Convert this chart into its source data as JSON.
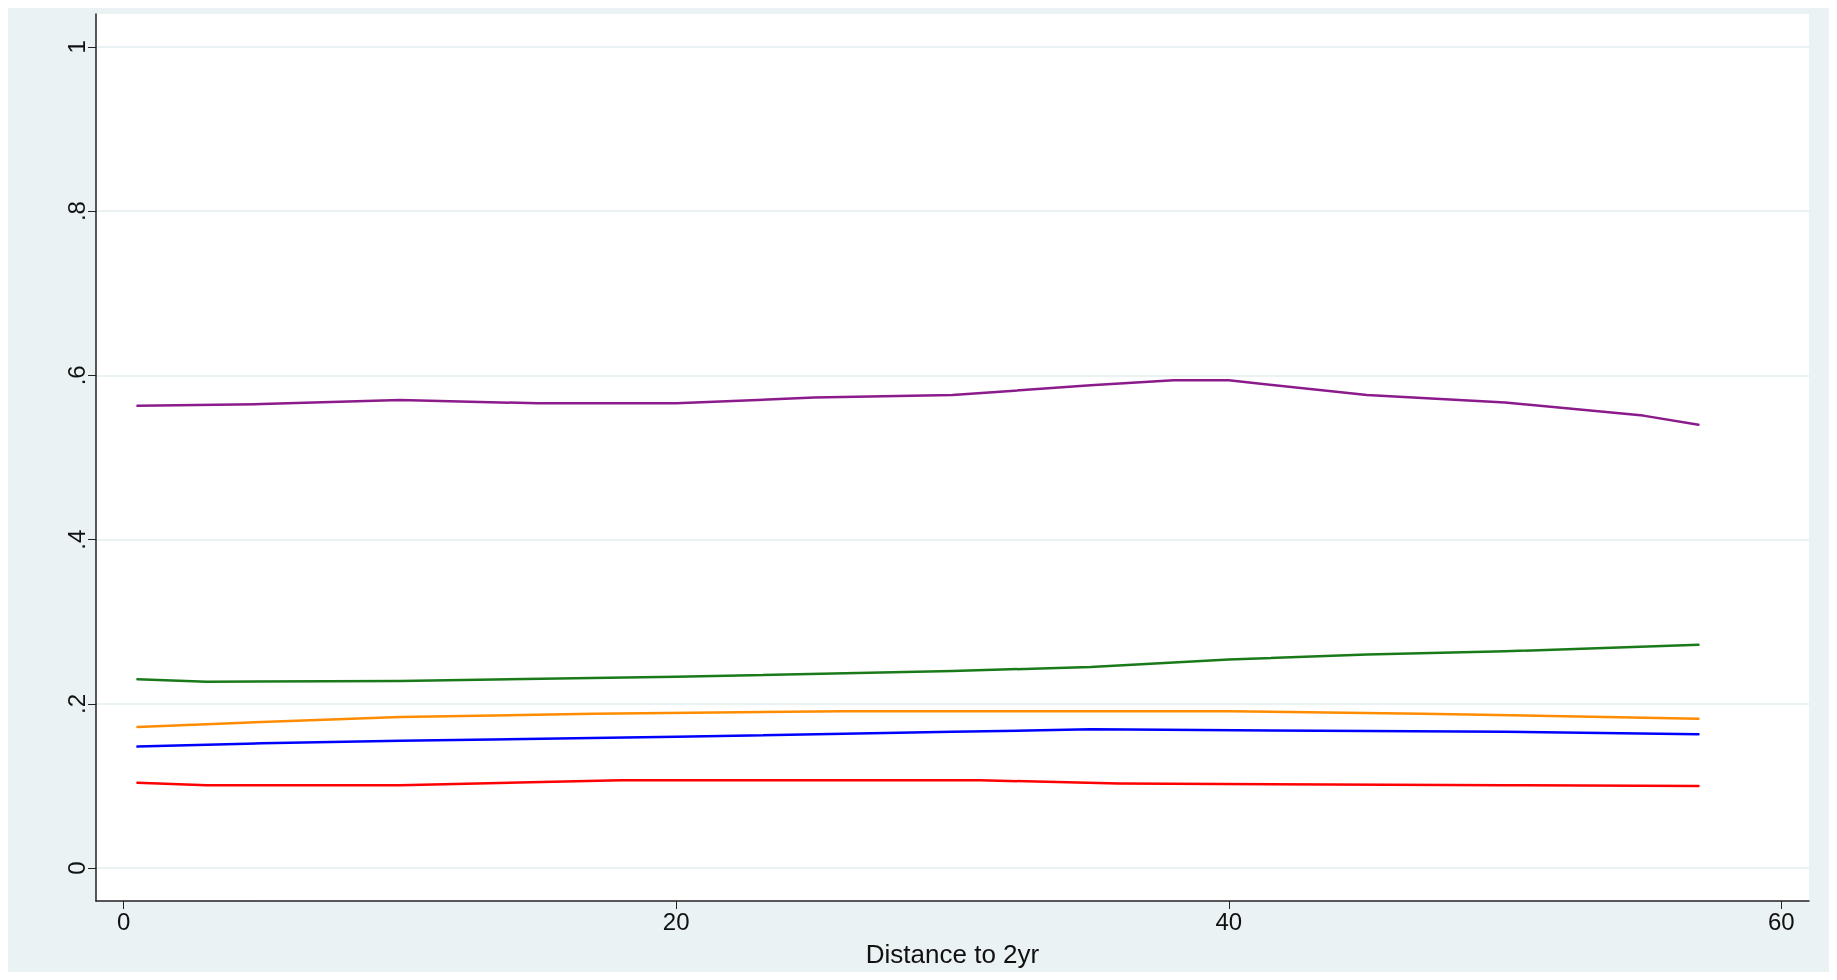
{
  "chart_data": {
    "type": "line",
    "xlabel": "Distance to 2yr",
    "xlim": [
      -1,
      61
    ],
    "xticks": [
      0,
      20,
      40,
      60
    ],
    "ylim": [
      -0.04,
      1.04
    ],
    "yticks": [
      0,
      {
        "value": 0.2,
        "label": ".2"
      },
      {
        "value": 0.4,
        "label": ".4"
      },
      {
        "value": 0.6,
        "label": ".6"
      },
      {
        "value": 0.8,
        "label": ".8"
      },
      1
    ],
    "grid": "y",
    "marker": "none",
    "line_style": "solid",
    "series": [
      {
        "color": "#8b1a8b",
        "x": [
          0.5,
          5,
          10,
          15,
          20,
          25,
          30,
          35,
          38,
          40,
          45,
          50,
          55,
          57
        ],
        "values": [
          0.563,
          0.565,
          0.57,
          0.566,
          0.566,
          0.573,
          0.576,
          0.588,
          0.594,
          0.594,
          0.576,
          0.567,
          0.551,
          0.54
        ]
      },
      {
        "color": "#1a7a1a",
        "x": [
          0.5,
          3,
          10,
          20,
          30,
          35,
          40,
          45,
          50,
          57
        ],
        "values": [
          0.23,
          0.227,
          0.228,
          0.233,
          0.24,
          0.245,
          0.254,
          0.26,
          0.264,
          0.272
        ]
      },
      {
        "color": "#ff8c00",
        "x": [
          0.5,
          5,
          10,
          17,
          26,
          40,
          47,
          57
        ],
        "values": [
          0.172,
          0.178,
          0.184,
          0.188,
          0.191,
          0.191,
          0.188,
          0.182
        ]
      },
      {
        "color": "#0000ff",
        "x": [
          0.5,
          5,
          10,
          20,
          30,
          35,
          45,
          50,
          57
        ],
        "values": [
          0.148,
          0.152,
          0.155,
          0.16,
          0.166,
          0.169,
          0.167,
          0.166,
          0.163
        ]
      },
      {
        "color": "#ff0000",
        "x": [
          0.5,
          3,
          10,
          18,
          31,
          36,
          50,
          57
        ],
        "values": [
          0.104,
          0.101,
          0.101,
          0.107,
          0.107,
          0.103,
          0.101,
          0.1
        ]
      }
    ]
  }
}
